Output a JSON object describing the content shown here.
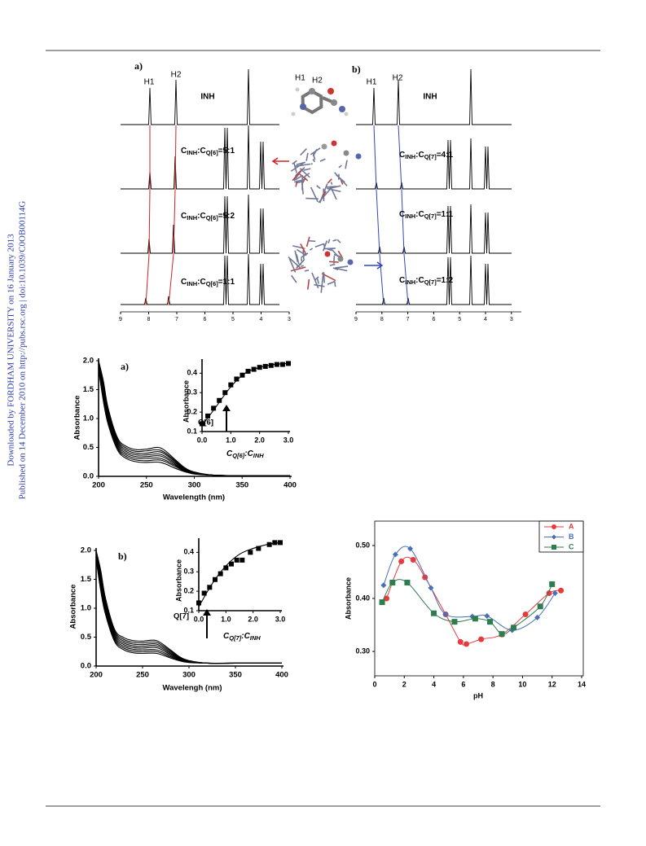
{
  "side_note": [
    "Downloaded by FORDHAM UNIVERSITY on 16 January 2013",
    "Published on 14 December 2010 on http://pubs.rsc.org | doi:10.1039/C0OB00114G"
  ],
  "nmr_figure": {
    "structure_labels": [
      "H1",
      "H2"
    ],
    "panels": [
      {
        "label": "a)",
        "peak_labels": [
          "H1",
          "H2"
        ],
        "compound": "INH",
        "ratios": [
          [
            "C",
            "INH",
            ":C",
            "Q[6]",
            "=5:1"
          ],
          [
            "C",
            "INH",
            ":C",
            "Q[6]",
            "=5:2"
          ],
          [
            "C",
            "INH",
            ":C",
            "Q[6]",
            "=1:1"
          ]
        ],
        "xticks": [
          9,
          8,
          7,
          6,
          5,
          4,
          3
        ]
      },
      {
        "label": "b)",
        "peak_labels": [
          "H1",
          "H2"
        ],
        "compound": "INH",
        "ratios": [
          [
            "C",
            "INH",
            ":C",
            "Q[7]",
            "=4:1"
          ],
          [
            "C",
            "INH",
            ":C",
            "Q[7]",
            "=1:1"
          ],
          [
            "C",
            "INH",
            ":C",
            "Q[7]",
            "=1:2"
          ]
        ],
        "xticks": [
          9,
          8,
          7,
          6,
          5,
          4,
          3
        ]
      }
    ]
  },
  "chart_data": [
    {
      "type": "line",
      "label": "a)",
      "annotation": "Q[6]",
      "xlabel": "Wavelength (nm)",
      "ylabel": "Absorbance",
      "x": [
        200,
        205,
        210,
        220,
        230,
        240,
        250,
        265,
        280,
        290,
        300,
        320,
        350,
        400
      ],
      "xlim": [
        200,
        400
      ],
      "ylim": [
        0,
        2
      ],
      "xticks": [
        200,
        250,
        300,
        350,
        400
      ],
      "yticks": [
        {
          "value": 0,
          "label": "0.0"
        },
        {
          "value": 0.5,
          "label": "0.5"
        },
        {
          "value": 1,
          "label": "1.0"
        },
        {
          "value": 1.5,
          "label": "1.5"
        },
        {
          "value": 2,
          "label": "2.0"
        }
      ],
      "series": [
        {
          "color": "#000000",
          "values": [
            1.85,
            1.3,
            0.9,
            0.45,
            0.3,
            0.25,
            0.24,
            0.24,
            0.14,
            0.08,
            0.04,
            0.02,
            0.01,
            0.01
          ]
        },
        {
          "color": "#000000",
          "values": [
            1.88,
            1.35,
            0.94,
            0.48,
            0.33,
            0.28,
            0.27,
            0.28,
            0.17,
            0.09,
            0.045,
            0.02,
            0.01,
            0.01
          ]
        },
        {
          "color": "#000000",
          "values": [
            1.9,
            1.4,
            0.98,
            0.51,
            0.36,
            0.31,
            0.31,
            0.31,
            0.19,
            0.1,
            0.05,
            0.02,
            0.01,
            0.01
          ]
        },
        {
          "color": "#000000",
          "values": [
            1.92,
            1.45,
            1.02,
            0.54,
            0.39,
            0.34,
            0.34,
            0.35,
            0.21,
            0.11,
            0.055,
            0.02,
            0.01,
            0.01
          ]
        },
        {
          "color": "#000000",
          "values": [
            1.94,
            1.5,
            1.06,
            0.57,
            0.42,
            0.37,
            0.37,
            0.38,
            0.23,
            0.12,
            0.06,
            0.02,
            0.01,
            0.01
          ]
        },
        {
          "color": "#000000",
          "values": [
            1.96,
            1.55,
            1.1,
            0.6,
            0.45,
            0.4,
            0.4,
            0.42,
            0.25,
            0.13,
            0.065,
            0.02,
            0.01,
            0.01
          ]
        },
        {
          "color": "#000000",
          "values": [
            1.98,
            1.6,
            1.14,
            0.63,
            0.48,
            0.43,
            0.44,
            0.45,
            0.27,
            0.14,
            0.07,
            0.02,
            0.01,
            0.01
          ]
        },
        {
          "color": "#000000",
          "values": [
            2.0,
            1.65,
            1.18,
            0.66,
            0.51,
            0.46,
            0.47,
            0.49,
            0.29,
            0.15,
            0.075,
            0.02,
            0.01,
            0.01
          ]
        }
      ]
    },
    {
      "type": "scatter",
      "ylabel": "Absorbance",
      "xlabel": [
        "C",
        "Q[6]",
        ":C",
        "INH"
      ],
      "xlim": [
        0,
        3
      ],
      "ylim": [
        0.1,
        0.46
      ],
      "xticks": [
        {
          "value": 0,
          "label": "0.0"
        },
        {
          "value": 1,
          "label": "1.0"
        },
        {
          "value": 2,
          "label": "2.0"
        },
        {
          "value": 3,
          "label": "3.0"
        }
      ],
      "yticks": [
        0.1,
        0.2,
        0.3,
        0.4
      ],
      "series": [
        {
          "color": "#000000",
          "marker": "square",
          "line": false,
          "x": [
            0,
            0.2,
            0.4,
            0.6,
            0.8,
            1.0,
            1.2,
            1.4,
            1.6,
            1.8,
            2.0,
            2.2,
            2.4,
            2.6,
            2.8,
            3.0
          ],
          "values": [
            0.14,
            0.18,
            0.22,
            0.26,
            0.3,
            0.34,
            0.37,
            0.39,
            0.41,
            0.42,
            0.43,
            0.435,
            0.44,
            0.445,
            0.445,
            0.45
          ]
        },
        {
          "color": "#000000",
          "x": [
            0,
            0.5,
            1,
            1.5,
            2,
            2.5,
            3
          ],
          "values": [
            0.13,
            0.23,
            0.33,
            0.4,
            0.43,
            0.445,
            0.45
          ]
        }
      ]
    },
    {
      "type": "line",
      "label": "b)",
      "annotation": "Q[7]",
      "xlabel": "Wavelengh (nm)",
      "ylabel": "Absorbance",
      "x": [
        200,
        205,
        210,
        220,
        230,
        240,
        250,
        265,
        280,
        290,
        300,
        320,
        350,
        400
      ],
      "xlim": [
        200,
        400
      ],
      "ylim": [
        0,
        2
      ],
      "xticks": [
        200,
        250,
        300,
        350,
        400
      ],
      "yticks": [
        {
          "value": 0,
          "label": "0.0"
        },
        {
          "value": 0.5,
          "label": "0.5"
        },
        {
          "value": 1,
          "label": "1.0"
        },
        {
          "value": 1.5,
          "label": "1.5"
        },
        {
          "value": 2,
          "label": "2.0"
        }
      ],
      "series": [
        {
          "color": "#000000",
          "values": [
            1.85,
            1.3,
            0.9,
            0.42,
            0.28,
            0.23,
            0.22,
            0.22,
            0.14,
            0.09,
            0.06,
            0.05,
            0.05,
            0.05
          ]
        },
        {
          "color": "#000000",
          "values": [
            1.88,
            1.35,
            0.94,
            0.45,
            0.31,
            0.26,
            0.25,
            0.25,
            0.16,
            0.1,
            0.065,
            0.05,
            0.05,
            0.05
          ]
        },
        {
          "color": "#000000",
          "values": [
            1.9,
            1.4,
            0.98,
            0.48,
            0.34,
            0.29,
            0.28,
            0.28,
            0.18,
            0.11,
            0.07,
            0.05,
            0.05,
            0.05
          ]
        },
        {
          "color": "#000000",
          "values": [
            1.92,
            1.45,
            1.02,
            0.51,
            0.37,
            0.32,
            0.31,
            0.32,
            0.2,
            0.12,
            0.075,
            0.05,
            0.05,
            0.05
          ]
        },
        {
          "color": "#000000",
          "values": [
            1.94,
            1.5,
            1.06,
            0.54,
            0.4,
            0.35,
            0.34,
            0.35,
            0.22,
            0.13,
            0.08,
            0.05,
            0.05,
            0.05
          ]
        },
        {
          "color": "#000000",
          "values": [
            1.96,
            1.55,
            1.1,
            0.57,
            0.43,
            0.38,
            0.37,
            0.38,
            0.24,
            0.14,
            0.085,
            0.05,
            0.05,
            0.05
          ]
        },
        {
          "color": "#000000",
          "values": [
            1.98,
            1.6,
            1.14,
            0.6,
            0.46,
            0.41,
            0.4,
            0.41,
            0.26,
            0.15,
            0.09,
            0.05,
            0.05,
            0.05
          ]
        },
        {
          "color": "#000000",
          "values": [
            2.0,
            1.65,
            1.18,
            0.63,
            0.49,
            0.44,
            0.43,
            0.44,
            0.28,
            0.16,
            0.095,
            0.05,
            0.05,
            0.05
          ]
        }
      ]
    },
    {
      "type": "scatter",
      "ylabel": "Absorbance",
      "xlabel": [
        "C",
        "Q[7]",
        ":C",
        "INH"
      ],
      "xlim": [
        0,
        3
      ],
      "ylim": [
        0.1,
        0.46
      ],
      "xticks": [
        {
          "value": 0,
          "label": "0.0"
        },
        {
          "value": 1,
          "label": "1.0"
        },
        {
          "value": 2,
          "label": "2.0"
        },
        {
          "value": 3,
          "label": "3.0"
        }
      ],
      "yticks": [
        0.1,
        0.2,
        0.3,
        0.4
      ],
      "series": [
        {
          "color": "#000000",
          "marker": "square",
          "line": false,
          "x": [
            0,
            0.2,
            0.4,
            0.6,
            0.8,
            1.0,
            1.2,
            1.4,
            1.6,
            1.9,
            2.2,
            2.6,
            2.8,
            3.0
          ],
          "values": [
            0.14,
            0.19,
            0.22,
            0.26,
            0.29,
            0.32,
            0.34,
            0.36,
            0.36,
            0.4,
            0.42,
            0.44,
            0.45,
            0.45
          ]
        },
        {
          "color": "#000000",
          "x": [
            0,
            0.5,
            1,
            1.5,
            2,
            2.5,
            3
          ],
          "values": [
            0.12,
            0.24,
            0.33,
            0.39,
            0.42,
            0.44,
            0.45
          ]
        }
      ]
    },
    {
      "type": "line",
      "xlabel": "pH",
      "ylabel": "Absorbance",
      "legend": "top right",
      "xlim": [
        0,
        14
      ],
      "ylim": [
        0.254,
        0.546
      ],
      "xticks": [
        0,
        2,
        4,
        6,
        8,
        10,
        12,
        14
      ],
      "yticks": [
        {
          "value": 0.3,
          "label": "0.30"
        },
        {
          "value": 0.4,
          "label": "0.40"
        },
        {
          "value": 0.5,
          "label": "0.50"
        }
      ],
      "series": [
        {
          "name": "A",
          "color": "#e8393c",
          "marker": "circle",
          "x": [
            0.8,
            1.8,
            2.6,
            3.4,
            4.8,
            5.8,
            6.2,
            7.2,
            8.6,
            10.2,
            11.8,
            12.6
          ],
          "values": [
            0.4,
            0.47,
            0.473,
            0.44,
            0.37,
            0.318,
            0.314,
            0.323,
            0.332,
            0.37,
            0.41,
            0.415
          ]
        },
        {
          "name": "B",
          "color": "#4a6fb5",
          "marker": "diamond",
          "x": [
            0.6,
            1.4,
            2.4,
            3.8,
            4.8,
            6.6,
            7.6,
            9.3,
            11.0,
            12.2
          ],
          "values": [
            0.425,
            0.483,
            0.494,
            0.42,
            0.37,
            0.366,
            0.367,
            0.34,
            0.364,
            0.41
          ]
        },
        {
          "name": "C",
          "color": "#2e7d4f",
          "marker": "square",
          "x": [
            0.5,
            1.2,
            2.2,
            4.0,
            5.4,
            6.8,
            7.8,
            8.6,
            9.4,
            11.2,
            12.0
          ],
          "values": [
            0.393,
            0.43,
            0.43,
            0.372,
            0.356,
            0.362,
            0.356,
            0.333,
            0.345,
            0.385,
            0.427
          ]
        }
      ]
    }
  ]
}
